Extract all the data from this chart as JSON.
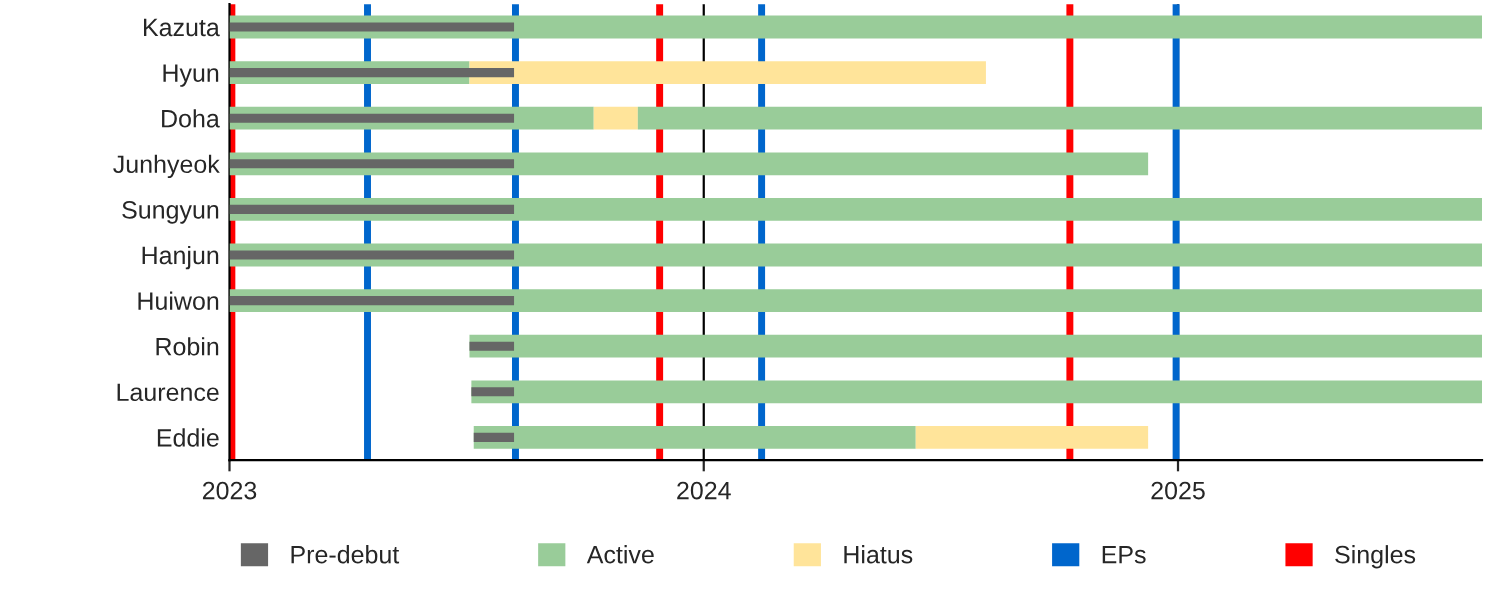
{
  "chart_data": {
    "type": "bar",
    "orientation": "horizontal",
    "categories": [
      "Kazuta",
      "Hyun",
      "Doha",
      "Junhyeok",
      "Sungyun",
      "Hanjun",
      "Huiwon",
      "Robin",
      "Laurence",
      "Eddie"
    ],
    "series": [
      {
        "name": "Pre-debut",
        "color": "#666666",
        "base": [
          2023,
          2023,
          2023,
          2023,
          2023,
          2023,
          2023,
          2023.506,
          2023.51,
          2023.515
        ],
        "values": [
          0.6,
          0.6,
          0.6,
          0.6,
          0.6,
          0.6,
          0.6,
          0.094,
          0.09,
          0.085
        ]
      },
      {
        "name": "Active",
        "color": "#99cc99",
        "base": [
          2023,
          2023,
          2023,
          2023,
          2023,
          2023,
          2023,
          2023.506,
          2023.51,
          2023.515
        ],
        "values": [
          2.641,
          0.506,
          0.768,
          1.937,
          2.641,
          2.641,
          2.641,
          2.135,
          2.131,
          0.932
        ]
      },
      {
        "name": "Hiatus",
        "color": "#ffe49a",
        "base": [
          null,
          2023.506,
          2023.768,
          null,
          null,
          null,
          null,
          null,
          null,
          2024.447
        ],
        "values": [
          null,
          1.089,
          0.093,
          null,
          null,
          null,
          null,
          null,
          null,
          0.49
        ]
      },
      {
        "color": "#99cc99",
        "base": [
          null,
          null,
          2023.861,
          null,
          null,
          null,
          null,
          null,
          null,
          null
        ],
        "values": [
          null,
          null,
          1.78,
          null,
          null,
          null,
          null,
          null,
          null,
          null
        ]
      }
    ],
    "ref_lines": [
      {
        "axis": "x",
        "value": 2023.291,
        "label": "EPs",
        "color": "#0066cc"
      },
      {
        "axis": "x",
        "value": 2023.603,
        "color": "#0066cc"
      },
      {
        "axis": "x",
        "value": 2024.122,
        "color": "#0066cc"
      },
      {
        "axis": "x",
        "value": 2024.996,
        "color": "#0066cc"
      },
      {
        "axis": "x",
        "value": 2023.005,
        "label": "Singles",
        "color": "#ff0000"
      },
      {
        "axis": "x",
        "value": 2023.907,
        "color": "#ff0000"
      },
      {
        "axis": "x",
        "value": 2024.772,
        "color": "#ff0000"
      }
    ],
    "xlim": [
      2023,
      2025.641
    ],
    "xticks": [
      2023,
      2024,
      2025
    ],
    "grid": "x",
    "legend": "bottom"
  }
}
